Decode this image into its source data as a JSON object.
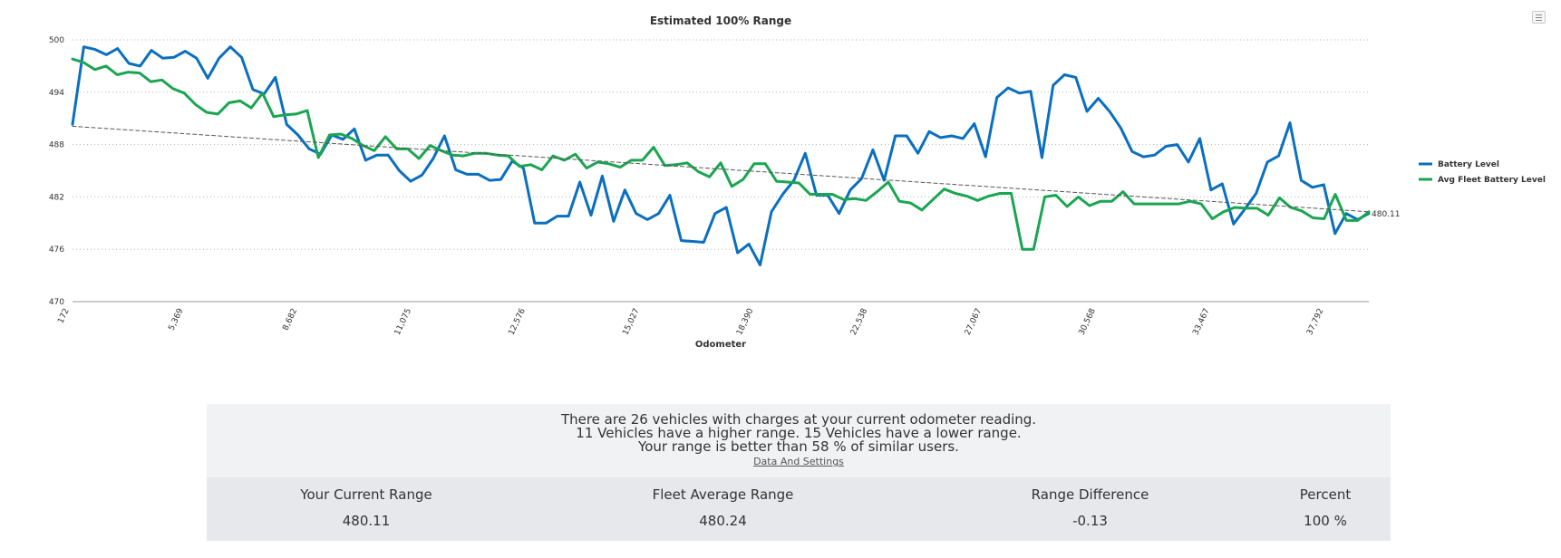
{
  "chart_data": {
    "type": "line",
    "title": "Estimated 100% Range",
    "xlabel": "Odometer",
    "ylabel": "",
    "ylim": [
      470,
      500
    ],
    "yticks": [
      "470",
      "476",
      "482",
      "488",
      "494",
      "500"
    ],
    "xtick_labels": [
      "172",
      "5,369",
      "8,682",
      "11,075",
      "12,576",
      "15,027",
      "18,390",
      "22,538",
      "27,067",
      "30,568",
      "33,467",
      "37,792"
    ],
    "grid": true,
    "legend_position": "right",
    "end_label": "480.11",
    "series": [
      {
        "name": "Battery Level",
        "color": "#0a6fbf",
        "values": [
          490.3,
          499.2,
          498.9,
          498.3,
          499.0,
          497.3,
          497.0,
          498.8,
          497.9,
          498.0,
          498.7,
          497.9,
          495.6,
          497.9,
          499.2,
          498.0,
          494.3,
          493.8,
          495.7,
          490.3,
          489.1,
          487.5,
          486.9,
          489.1,
          488.6,
          489.8,
          486.2,
          486.8,
          486.8,
          485.0,
          483.8,
          484.5,
          486.4,
          489.0,
          485.1,
          484.6,
          484.6,
          483.9,
          484.0,
          486.1,
          485.3,
          479.0,
          479.0,
          479.8,
          479.8,
          483.7,
          479.9,
          484.4,
          479.2,
          482.8,
          480.1,
          479.4,
          480.1,
          482.2,
          477.0,
          476.9,
          476.8,
          480.1,
          480.8,
          475.6,
          476.6,
          474.2,
          480.3,
          482.3,
          483.9,
          487.0,
          482.2,
          482.2,
          480.1,
          482.8,
          484.1,
          487.4,
          483.9,
          489.0,
          489.0,
          487.0,
          489.5,
          488.8,
          489.0,
          488.7,
          490.4,
          486.6,
          493.4,
          494.5,
          493.9,
          494.1,
          486.5,
          494.8,
          496.0,
          495.7,
          491.8,
          493.3,
          491.8,
          489.9,
          487.2,
          486.6,
          486.8,
          487.8,
          488.0,
          486.0,
          488.7,
          482.8,
          483.5,
          478.9,
          480.6,
          482.4,
          486.0,
          486.7,
          490.5,
          483.9,
          483.1,
          483.4,
          477.8,
          480.1,
          479.4,
          480.1
        ]
      },
      {
        "name": "Avg Fleet Battery Level",
        "color": "#1aa551",
        "values": [
          497.8,
          497.4,
          496.6,
          497.0,
          496.0,
          496.3,
          496.2,
          495.2,
          495.4,
          494.4,
          493.9,
          492.6,
          491.7,
          491.5,
          492.8,
          493.0,
          492.2,
          493.9,
          491.2,
          491.4,
          491.5,
          491.9,
          486.5,
          489.1,
          489.2,
          488.7,
          487.9,
          487.3,
          488.9,
          487.5,
          487.5,
          486.4,
          487.9,
          487.3,
          486.8,
          486.7,
          487.0,
          487.0,
          486.8,
          486.7,
          485.5,
          485.7,
          485.1,
          486.7,
          486.2,
          486.9,
          485.3,
          486.0,
          485.8,
          485.4,
          486.2,
          486.2,
          487.7,
          485.6,
          485.7,
          485.9,
          484.9,
          484.3,
          485.9,
          483.2,
          484.0,
          485.8,
          485.8,
          483.8,
          483.7,
          483.6,
          482.3,
          482.3,
          482.3,
          481.7,
          481.8,
          481.6,
          482.6,
          483.7,
          481.5,
          481.3,
          480.5,
          481.7,
          482.9,
          482.4,
          482.1,
          481.6,
          482.1,
          482.4,
          482.4,
          476.0,
          476.0,
          482.0,
          482.2,
          480.9,
          482.0,
          481.0,
          481.5,
          481.5,
          482.6,
          481.2,
          481.2,
          481.2,
          481.2,
          481.2,
          481.5,
          481.2,
          479.5,
          480.3,
          480.8,
          480.7,
          480.7,
          479.9,
          481.9,
          480.8,
          480.4,
          479.6,
          479.5,
          482.3,
          479.3,
          479.3,
          480.3
        ]
      },
      {
        "name": "Trend",
        "color": "#555555",
        "values": [
          490.1,
          480.3
        ]
      }
    ]
  },
  "summary": {
    "line1": "There are 26 vehicles with charges at your current odometer reading.",
    "line2": "11 Vehicles have a higher range. 15 Vehicles have a lower range.",
    "line3": "Your range is better than 58 % of similar users.",
    "link": "Data And Settings"
  },
  "stats": {
    "current_range_label": "Your Current Range",
    "current_range_value": "480.11",
    "fleet_avg_label": "Fleet Average Range",
    "fleet_avg_value": "480.24",
    "difference_label": "Range Difference",
    "difference_value": "-0.13",
    "percent_label": "Percent",
    "percent_value": "100 %"
  },
  "colors": {
    "summary_bg": "#f1f2f4",
    "stats_bg": "#e6e8ec"
  }
}
